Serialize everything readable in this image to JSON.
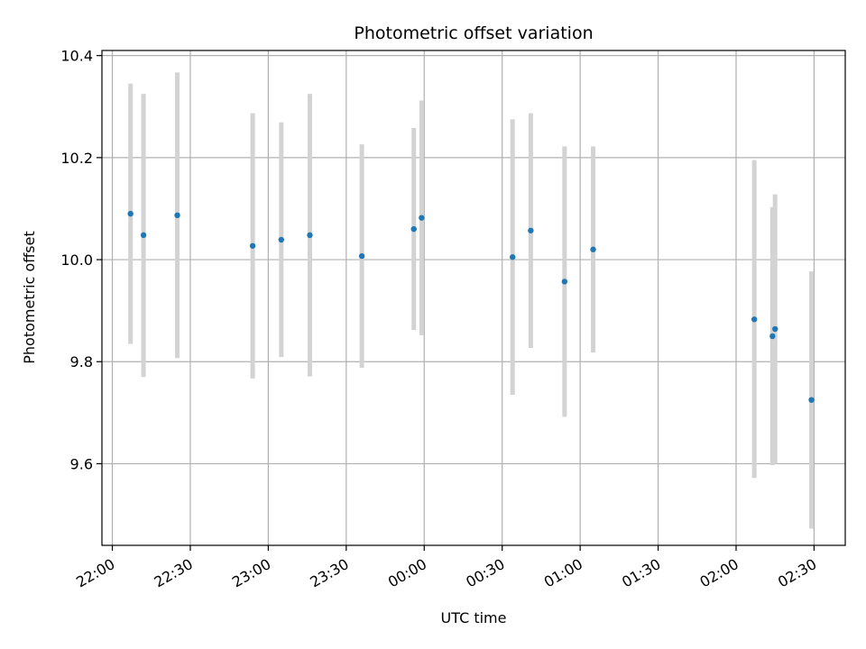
{
  "chart_data": {
    "type": "scatter",
    "title": "Photometric offset variation",
    "xlabel": "UTC time",
    "ylabel": "Photometric offset",
    "x_ticks": [
      "22:00",
      "22:30",
      "23:00",
      "23:30",
      "00:00",
      "00:30",
      "01:00",
      "01:30",
      "02:00",
      "02:30"
    ],
    "y_ticks": [
      "9.6",
      "9.8",
      "10.0",
      "10.2",
      "10.4"
    ],
    "xlim": [
      "21:56",
      "02:42"
    ],
    "ylim": [
      9.44,
      10.41
    ],
    "grid": true,
    "colors": {
      "point": "#1f77b4",
      "errorbar": "#d3d3d3",
      "grid": "#b0b0b0"
    },
    "points": [
      {
        "time": "22:07",
        "y": 10.09,
        "err_low": 9.835,
        "err_high": 10.345
      },
      {
        "time": "22:12",
        "y": 10.048,
        "err_low": 9.77,
        "err_high": 10.325
      },
      {
        "time": "22:25",
        "y": 10.087,
        "err_low": 9.807,
        "err_high": 10.367
      },
      {
        "time": "22:54",
        "y": 10.027,
        "err_low": 9.767,
        "err_high": 10.287
      },
      {
        "time": "23:05",
        "y": 10.039,
        "err_low": 9.809,
        "err_high": 10.269
      },
      {
        "time": "23:16",
        "y": 10.048,
        "err_low": 9.771,
        "err_high": 10.325
      },
      {
        "time": "23:36",
        "y": 10.007,
        "err_low": 9.788,
        "err_high": 10.226
      },
      {
        "time": "23:56",
        "y": 10.06,
        "err_low": 9.862,
        "err_high": 10.258
      },
      {
        "time": "23:59",
        "y": 10.082,
        "err_low": 9.852,
        "err_high": 10.312
      },
      {
        "time": "00:34",
        "y": 10.005,
        "err_low": 9.735,
        "err_high": 10.275
      },
      {
        "time": "00:41",
        "y": 10.057,
        "err_low": 9.827,
        "err_high": 10.287
      },
      {
        "time": "00:54",
        "y": 9.957,
        "err_low": 9.692,
        "err_high": 10.222
      },
      {
        "time": "01:05",
        "y": 10.02,
        "err_low": 9.818,
        "err_high": 10.222
      },
      {
        "time": "02:07",
        "y": 9.883,
        "err_low": 9.572,
        "err_high": 10.195
      },
      {
        "time": "02:14",
        "y": 9.85,
        "err_low": 9.597,
        "err_high": 10.103
      },
      {
        "time": "02:15",
        "y": 9.864,
        "err_low": 9.6,
        "err_high": 10.128
      },
      {
        "time": "02:29",
        "y": 9.725,
        "err_low": 9.473,
        "err_high": 9.977
      }
    ]
  }
}
